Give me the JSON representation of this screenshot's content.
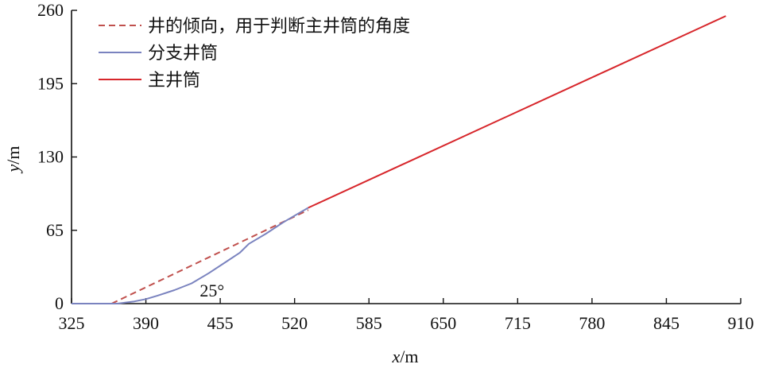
{
  "chart_data": {
    "type": "line",
    "xlabel_var": "x",
    "xlabel_unit": "/m",
    "ylabel_var": "y",
    "ylabel_unit": "/m",
    "xlim": [
      325,
      910
    ],
    "ylim": [
      0,
      260
    ],
    "xticks": [
      325,
      390,
      455,
      520,
      585,
      650,
      715,
      780,
      845,
      910
    ],
    "yticks": [
      0,
      65,
      130,
      195,
      260
    ],
    "legend_position": "top-left",
    "annotation": {
      "text": "25°",
      "x": 458,
      "y": 10
    },
    "series": [
      {
        "name": "井的倾向，用于判断主井筒的角度",
        "color": "#c0504d",
        "style": "dashed",
        "x": [
          360,
          532
        ],
        "y": [
          0,
          83
        ]
      },
      {
        "name": "分支井筒",
        "color": "#7a83bf",
        "style": "solid",
        "x": [
          325,
          365,
          380,
          390,
          400,
          415,
          430,
          445,
          460,
          472,
          480,
          495,
          510,
          520,
          532
        ],
        "y": [
          0,
          0,
          2,
          4,
          7,
          12,
          18,
          27,
          37,
          45,
          53,
          62,
          72,
          78,
          85
        ]
      },
      {
        "name": "主井筒",
        "color": "#d7262b",
        "style": "solid",
        "x": [
          532,
          897
        ],
        "y": [
          85,
          255
        ]
      }
    ]
  }
}
